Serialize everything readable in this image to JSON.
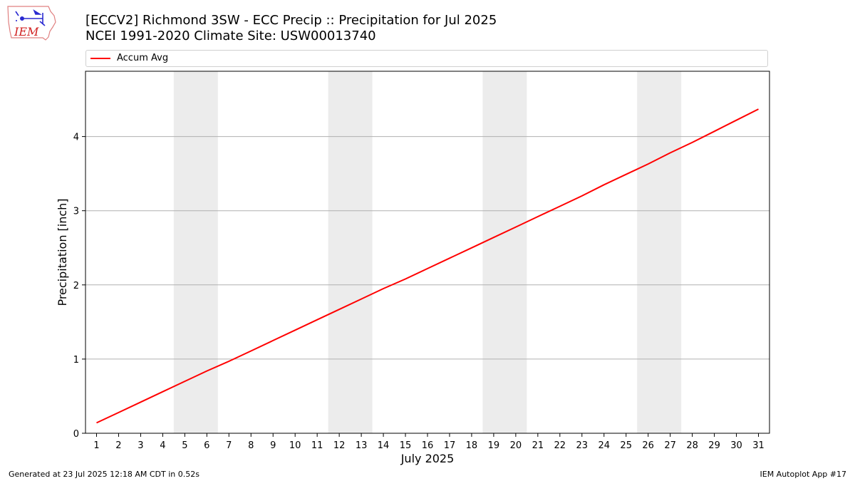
{
  "header": {
    "title_line1": "[ECCV2] Richmond 3SW - ECC Precip :: Precipitation for Jul 2025",
    "title_line2": "NCEI 1991-2020 Climate Site: USW00013740"
  },
  "logo": {
    "text": "IEM",
    "icon": "iem-iowa-logo"
  },
  "legend": {
    "label": "Accum Avg",
    "color": "#ff0000",
    "placement": "top"
  },
  "footer": {
    "left": "Generated at 23 Jul 2025 12:18 AM CDT in 0.52s",
    "right": "IEM Autoplot App #17"
  },
  "colors": {
    "line": "#ff0000",
    "weekend_band": "#ececec",
    "grid": "#b0b0b0"
  },
  "chart_data": {
    "type": "line",
    "title": "[ECCV2] Richmond 3SW - ECC Precip :: Precipitation for Jul 2025",
    "subtitle": "NCEI 1991-2020 Climate Site: USW00013740",
    "xlabel": "July 2025",
    "ylabel": "Precipitation [inch]",
    "xlim": [
      0.5,
      31.5
    ],
    "ylim": [
      0,
      4.88
    ],
    "x_ticks": [
      1,
      2,
      3,
      4,
      5,
      6,
      7,
      8,
      9,
      10,
      11,
      12,
      13,
      14,
      15,
      16,
      17,
      18,
      19,
      20,
      21,
      22,
      23,
      24,
      25,
      26,
      27,
      28,
      29,
      30,
      31
    ],
    "y_ticks": [
      0,
      1,
      2,
      3,
      4
    ],
    "grid": "horizontal",
    "shaded_ranges": [
      [
        4.5,
        6.5
      ],
      [
        11.5,
        13.5
      ],
      [
        18.5,
        20.5
      ],
      [
        25.5,
        27.5
      ]
    ],
    "x": [
      1,
      2,
      3,
      4,
      5,
      6,
      7,
      8,
      9,
      10,
      11,
      12,
      13,
      14,
      15,
      16,
      17,
      18,
      19,
      20,
      21,
      22,
      23,
      24,
      25,
      26,
      27,
      28,
      29,
      30,
      31
    ],
    "series": [
      {
        "name": "Accum Avg",
        "color": "#ff0000",
        "values": [
          0.14,
          0.28,
          0.42,
          0.56,
          0.7,
          0.84,
          0.97,
          1.11,
          1.25,
          1.39,
          1.53,
          1.67,
          1.81,
          1.95,
          2.08,
          2.22,
          2.36,
          2.5,
          2.64,
          2.78,
          2.92,
          3.06,
          3.2,
          3.35,
          3.49,
          3.63,
          3.78,
          3.92,
          4.07,
          4.22,
          4.37
        ]
      }
    ]
  }
}
